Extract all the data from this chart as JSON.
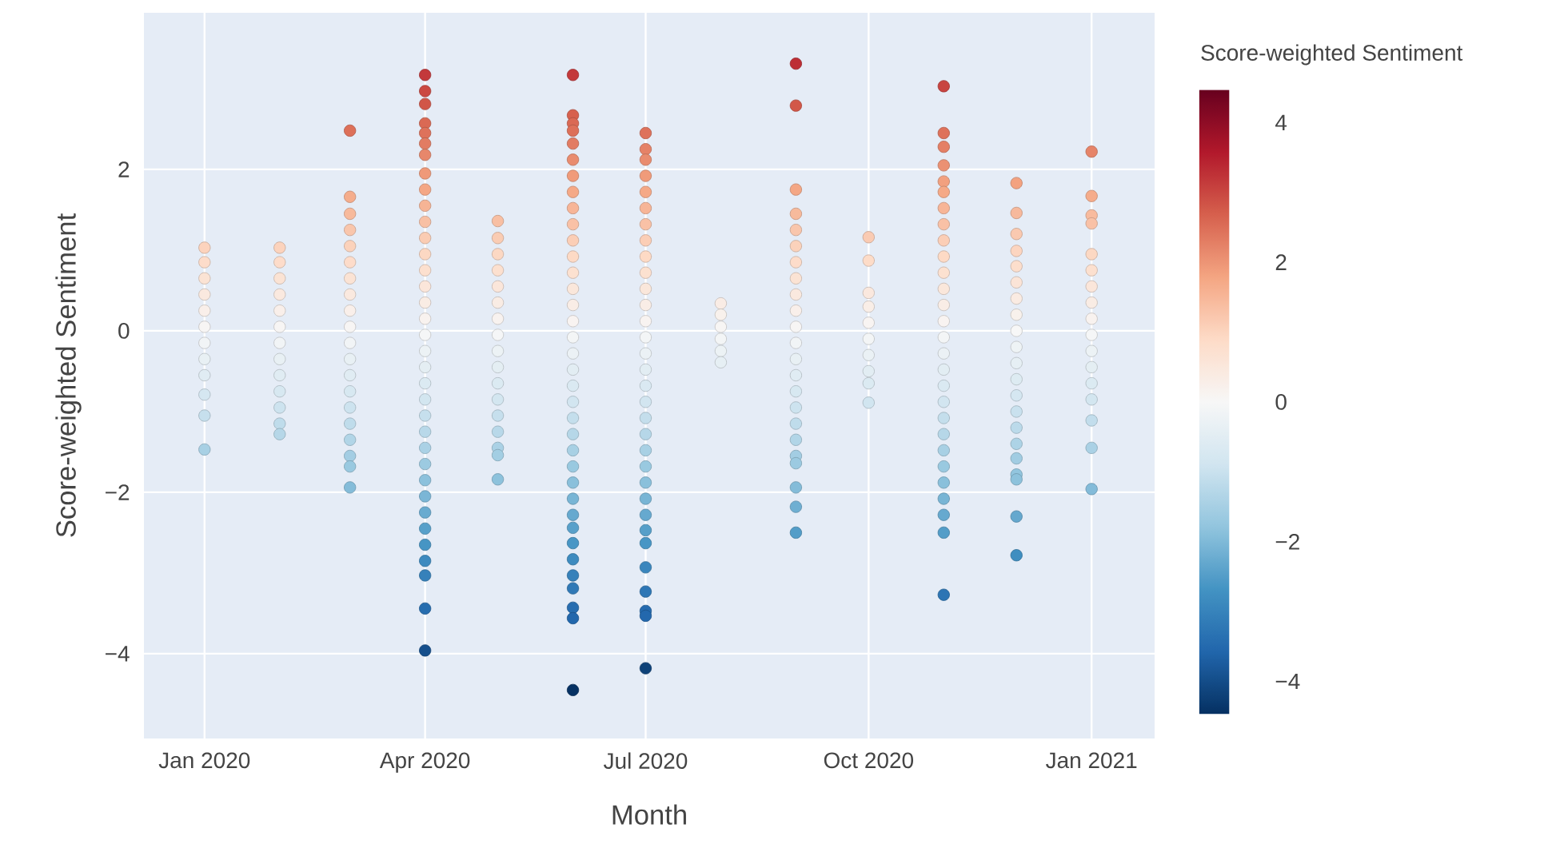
{
  "chart_data": {
    "type": "scatter",
    "xlabel": "Month",
    "ylabel": "Score-weighted Sentiment",
    "clabel": "Score-weighted Sentiment",
    "marker": "circle",
    "grid": true,
    "x": [
      "2020-01-01",
      "2020-01-01",
      "2020-01-01",
      "2020-01-01",
      "2020-01-01",
      "2020-01-01",
      "2020-01-01",
      "2020-01-01",
      "2020-01-01",
      "2020-01-01",
      "2020-01-01",
      "2020-01-01",
      "2020-02-01",
      "2020-02-01",
      "2020-02-01",
      "2020-02-01",
      "2020-02-01",
      "2020-02-01",
      "2020-02-01",
      "2020-02-01",
      "2020-02-01",
      "2020-02-01",
      "2020-02-01",
      "2020-02-01",
      "2020-02-01",
      "2020-03-01",
      "2020-03-01",
      "2020-03-01",
      "2020-03-01",
      "2020-03-01",
      "2020-03-01",
      "2020-03-01",
      "2020-03-01",
      "2020-03-01",
      "2020-03-01",
      "2020-03-01",
      "2020-03-01",
      "2020-03-01",
      "2020-03-01",
      "2020-03-01",
      "2020-03-01",
      "2020-03-01",
      "2020-03-01",
      "2020-03-01",
      "2020-03-01",
      "2020-04-01",
      "2020-04-01",
      "2020-04-01",
      "2020-04-01",
      "2020-04-01",
      "2020-04-01",
      "2020-04-01",
      "2020-04-01",
      "2020-04-01",
      "2020-04-01",
      "2020-04-01",
      "2020-04-01",
      "2020-04-01",
      "2020-04-01",
      "2020-04-01",
      "2020-04-01",
      "2020-04-01",
      "2020-04-01",
      "2020-04-01",
      "2020-04-01",
      "2020-04-01",
      "2020-04-01",
      "2020-04-01",
      "2020-04-01",
      "2020-04-01",
      "2020-04-01",
      "2020-04-01",
      "2020-04-01",
      "2020-04-01",
      "2020-04-01",
      "2020-04-01",
      "2020-04-01",
      "2020-04-01",
      "2020-04-01",
      "2020-04-01",
      "2020-05-01",
      "2020-05-01",
      "2020-05-01",
      "2020-05-01",
      "2020-05-01",
      "2020-05-01",
      "2020-05-01",
      "2020-05-01",
      "2020-05-01",
      "2020-05-01",
      "2020-05-01",
      "2020-05-01",
      "2020-05-01",
      "2020-05-01",
      "2020-05-01",
      "2020-05-01",
      "2020-05-01",
      "2020-06-01",
      "2020-06-01",
      "2020-06-01",
      "2020-06-01",
      "2020-06-01",
      "2020-06-01",
      "2020-06-01",
      "2020-06-01",
      "2020-06-01",
      "2020-06-01",
      "2020-06-01",
      "2020-06-01",
      "2020-06-01",
      "2020-06-01",
      "2020-06-01",
      "2020-06-01",
      "2020-06-01",
      "2020-06-01",
      "2020-06-01",
      "2020-06-01",
      "2020-06-01",
      "2020-06-01",
      "2020-06-01",
      "2020-06-01",
      "2020-06-01",
      "2020-06-01",
      "2020-06-01",
      "2020-06-01",
      "2020-06-01",
      "2020-06-01",
      "2020-06-01",
      "2020-06-01",
      "2020-06-01",
      "2020-06-01",
      "2020-06-01",
      "2020-06-01",
      "2020-07-01",
      "2020-07-01",
      "2020-07-01",
      "2020-07-01",
      "2020-07-01",
      "2020-07-01",
      "2020-07-01",
      "2020-07-01",
      "2020-07-01",
      "2020-07-01",
      "2020-07-01",
      "2020-07-01",
      "2020-07-01",
      "2020-07-01",
      "2020-07-01",
      "2020-07-01",
      "2020-07-01",
      "2020-07-01",
      "2020-07-01",
      "2020-07-01",
      "2020-07-01",
      "2020-07-01",
      "2020-07-01",
      "2020-07-01",
      "2020-07-01",
      "2020-07-01",
      "2020-07-01",
      "2020-07-01",
      "2020-07-01",
      "2020-07-01",
      "2020-07-01",
      "2020-07-01",
      "2020-08-01",
      "2020-08-01",
      "2020-08-01",
      "2020-08-01",
      "2020-08-01",
      "2020-08-01",
      "2020-09-01",
      "2020-09-01",
      "2020-09-01",
      "2020-09-01",
      "2020-09-01",
      "2020-09-01",
      "2020-09-01",
      "2020-09-01",
      "2020-09-01",
      "2020-09-01",
      "2020-09-01",
      "2020-09-01",
      "2020-09-01",
      "2020-09-01",
      "2020-09-01",
      "2020-09-01",
      "2020-09-01",
      "2020-09-01",
      "2020-09-01",
      "2020-09-01",
      "2020-09-01",
      "2020-09-01",
      "2020-09-01",
      "2020-10-01",
      "2020-10-01",
      "2020-10-01",
      "2020-10-01",
      "2020-10-01",
      "2020-10-01",
      "2020-10-01",
      "2020-10-01",
      "2020-10-01",
      "2020-10-01",
      "2020-11-01",
      "2020-11-01",
      "2020-11-01",
      "2020-11-01",
      "2020-11-01",
      "2020-11-01",
      "2020-11-01",
      "2020-11-01",
      "2020-11-01",
      "2020-11-01",
      "2020-11-01",
      "2020-11-01",
      "2020-11-01",
      "2020-11-01",
      "2020-11-01",
      "2020-11-01",
      "2020-11-01",
      "2020-11-01",
      "2020-11-01",
      "2020-11-01",
      "2020-11-01",
      "2020-11-01",
      "2020-11-01",
      "2020-11-01",
      "2020-11-01",
      "2020-11-01",
      "2020-11-01",
      "2020-11-01",
      "2020-12-01",
      "2020-12-01",
      "2020-12-01",
      "2020-12-01",
      "2020-12-01",
      "2020-12-01",
      "2020-12-01",
      "2020-12-01",
      "2020-12-01",
      "2020-12-01",
      "2020-12-01",
      "2020-12-01",
      "2020-12-01",
      "2020-12-01",
      "2020-12-01",
      "2020-12-01",
      "2020-12-01",
      "2020-12-01",
      "2020-12-01",
      "2020-12-01",
      "2020-12-01",
      "2021-01-01",
      "2021-01-01",
      "2021-01-01",
      "2021-01-01",
      "2021-01-01",
      "2021-01-01",
      "2021-01-01",
      "2021-01-01",
      "2021-01-01",
      "2021-01-01",
      "2021-01-01",
      "2021-01-01",
      "2021-01-01",
      "2021-01-01",
      "2021-01-01",
      "2021-01-01",
      "2021-01-01"
    ],
    "values": [
      1.03,
      0.85,
      0.65,
      0.45,
      0.25,
      0.05,
      -0.15,
      -0.35,
      -0.55,
      -0.79,
      -1.05,
      -1.47,
      1.03,
      0.85,
      0.65,
      0.45,
      0.25,
      0.05,
      -0.15,
      -0.35,
      -0.55,
      -0.75,
      -0.95,
      -1.15,
      -1.28,
      2.48,
      1.66,
      1.45,
      1.25,
      1.05,
      0.85,
      0.65,
      0.45,
      0.25,
      0.05,
      -0.15,
      -0.35,
      -0.55,
      -0.75,
      -0.95,
      -1.15,
      -1.35,
      -1.55,
      -1.68,
      -1.94,
      3.17,
      2.97,
      2.81,
      2.57,
      2.45,
      2.32,
      2.18,
      1.95,
      1.75,
      1.55,
      1.35,
      1.15,
      0.95,
      0.75,
      0.55,
      0.35,
      0.15,
      -0.05,
      -0.25,
      -0.45,
      -0.65,
      -0.85,
      -1.05,
      -1.25,
      -1.45,
      -1.65,
      -1.85,
      -2.05,
      -2.25,
      -2.45,
      -2.65,
      -2.85,
      -3.03,
      -3.44,
      -3.96,
      1.36,
      1.15,
      0.95,
      0.75,
      0.55,
      0.35,
      0.15,
      -0.05,
      -0.25,
      -0.45,
      -0.65,
      -0.85,
      -1.05,
      -1.25,
      -1.45,
      -1.54,
      -1.84,
      3.17,
      2.67,
      2.57,
      2.48,
      2.32,
      2.12,
      1.92,
      1.72,
      1.52,
      1.32,
      1.12,
      0.92,
      0.72,
      0.52,
      0.32,
      0.12,
      -0.08,
      -0.28,
      -0.48,
      -0.68,
      -0.88,
      -1.08,
      -1.28,
      -1.48,
      -1.68,
      -1.88,
      -2.08,
      -2.28,
      -2.44,
      -2.63,
      -2.83,
      -3.03,
      -3.19,
      -3.43,
      -3.56,
      -4.45,
      2.45,
      2.25,
      2.12,
      1.92,
      1.72,
      1.52,
      1.32,
      1.12,
      0.92,
      0.72,
      0.52,
      0.32,
      0.12,
      -0.08,
      -0.28,
      -0.48,
      -0.68,
      -0.88,
      -1.08,
      -1.28,
      -1.48,
      -1.68,
      -1.88,
      -2.08,
      -2.28,
      -2.47,
      -2.63,
      -2.93,
      -3.23,
      -3.47,
      -3.53,
      -4.18,
      0.34,
      0.2,
      0.05,
      -0.1,
      -0.25,
      -0.39,
      3.31,
      2.79,
      1.75,
      1.45,
      1.25,
      1.05,
      0.85,
      0.65,
      0.45,
      0.25,
      0.05,
      -0.15,
      -0.35,
      -0.55,
      -0.75,
      -0.95,
      -1.15,
      -1.35,
      -1.55,
      -1.64,
      -1.94,
      -2.18,
      -2.5,
      1.16,
      0.87,
      0.47,
      0.3,
      0.1,
      -0.1,
      -0.3,
      -0.5,
      -0.65,
      -0.89,
      3.03,
      2.45,
      2.28,
      2.05,
      1.85,
      1.72,
      1.52,
      1.32,
      1.12,
      0.92,
      0.72,
      0.52,
      0.32,
      0.12,
      -0.08,
      -0.28,
      -0.48,
      -0.68,
      -0.88,
      -1.08,
      -1.28,
      -1.48,
      -1.68,
      -1.88,
      -2.08,
      -2.28,
      -2.5,
      -3.27,
      1.83,
      1.46,
      1.2,
      0.99,
      0.8,
      0.6,
      0.4,
      0.2,
      0,
      -0.2,
      -0.4,
      -0.6,
      -0.8,
      -1,
      -1.2,
      -1.4,
      -1.58,
      -1.78,
      -1.84,
      -2.3,
      -2.78,
      2.22,
      1.67,
      1.43,
      1.33,
      0.95,
      0.75,
      0.55,
      0.35,
      0.15,
      -0.05,
      -0.25,
      -0.45,
      -0.65,
      -0.85,
      -1.11,
      -1.45,
      -1.96
    ],
    "cvalues": [
      1.03,
      0.85,
      0.65,
      0.45,
      0.25,
      0.05,
      -0.15,
      -0.35,
      -0.55,
      -0.79,
      -1.05,
      -1.47,
      1.03,
      0.85,
      0.65,
      0.45,
      0.25,
      0.05,
      -0.15,
      -0.35,
      -0.55,
      -0.75,
      -0.95,
      -1.15,
      -1.28,
      2.48,
      1.66,
      1.45,
      1.25,
      1.05,
      0.85,
      0.65,
      0.45,
      0.25,
      0.05,
      -0.15,
      -0.35,
      -0.55,
      -0.75,
      -0.95,
      -1.15,
      -1.35,
      -1.55,
      -1.68,
      -1.94,
      3.17,
      2.97,
      2.81,
      2.57,
      2.45,
      2.32,
      2.18,
      1.95,
      1.75,
      1.55,
      1.35,
      1.15,
      0.95,
      0.75,
      0.55,
      0.35,
      0.15,
      -0.05,
      -0.25,
      -0.45,
      -0.65,
      -0.85,
      -1.05,
      -1.25,
      -1.45,
      -1.65,
      -1.85,
      -2.05,
      -2.25,
      -2.45,
      -2.65,
      -2.85,
      -3.03,
      -3.44,
      -3.96,
      1.36,
      1.15,
      0.95,
      0.75,
      0.55,
      0.35,
      0.15,
      -0.05,
      -0.25,
      -0.45,
      -0.65,
      -0.85,
      -1.05,
      -1.25,
      -1.45,
      -1.54,
      -1.84,
      3.17,
      2.67,
      2.57,
      2.48,
      2.32,
      2.12,
      1.92,
      1.72,
      1.52,
      1.32,
      1.12,
      0.92,
      0.72,
      0.52,
      0.32,
      0.12,
      -0.08,
      -0.28,
      -0.48,
      -0.68,
      -0.88,
      -1.08,
      -1.28,
      -1.48,
      -1.68,
      -1.88,
      -2.08,
      -2.28,
      -2.44,
      -2.63,
      -2.83,
      -3.03,
      -3.19,
      -3.43,
      -3.56,
      -4.45,
      2.45,
      2.25,
      2.12,
      1.92,
      1.72,
      1.52,
      1.32,
      1.12,
      0.92,
      0.72,
      0.52,
      0.32,
      0.12,
      -0.08,
      -0.28,
      -0.48,
      -0.68,
      -0.88,
      -1.08,
      -1.28,
      -1.48,
      -1.68,
      -1.88,
      -2.08,
      -2.28,
      -2.47,
      -2.63,
      -2.93,
      -3.23,
      -3.47,
      -3.53,
      -4.18,
      0.34,
      0.2,
      0.05,
      -0.1,
      -0.25,
      -0.39,
      3.31,
      2.79,
      1.75,
      1.45,
      1.25,
      1.05,
      0.85,
      0.65,
      0.45,
      0.25,
      0.05,
      -0.15,
      -0.35,
      -0.55,
      -0.75,
      -0.95,
      -1.15,
      -1.35,
      -1.55,
      -1.64,
      -1.94,
      -2.18,
      -2.5,
      1.16,
      0.87,
      0.47,
      0.3,
      0.1,
      -0.1,
      -0.3,
      -0.5,
      -0.65,
      -0.89,
      3.03,
      2.45,
      2.28,
      2.05,
      1.85,
      1.72,
      1.52,
      1.32,
      1.12,
      0.92,
      0.72,
      0.52,
      0.32,
      0.12,
      -0.08,
      -0.28,
      -0.48,
      -0.68,
      -0.88,
      -1.08,
      -1.28,
      -1.48,
      -1.68,
      -1.88,
      -2.08,
      -2.28,
      -2.5,
      -3.27,
      1.83,
      1.46,
      1.2,
      0.99,
      0.8,
      0.6,
      0.4,
      0.2,
      0,
      -0.2,
      -0.4,
      -0.6,
      -0.8,
      -1,
      -1.2,
      -1.4,
      -1.58,
      -1.78,
      -1.84,
      -2.3,
      -2.78,
      2.22,
      1.67,
      1.43,
      1.33,
      0.95,
      0.75,
      0.55,
      0.35,
      0.15,
      -0.05,
      -0.25,
      -0.45,
      -0.65,
      -0.85,
      -1.11,
      -1.45,
      -1.96
    ],
    "xlim": [
      "2019-12-07",
      "2021-01-27"
    ],
    "xticks": [
      {
        "value": "2020-01-01",
        "label": "Jan 2020"
      },
      {
        "value": "2020-04-01",
        "label": "Apr 2020"
      },
      {
        "value": "2020-07-01",
        "label": "Jul 2020"
      },
      {
        "value": "2020-10-01",
        "label": "Oct 2020"
      },
      {
        "value": "2021-01-01",
        "label": "Jan 2021"
      }
    ],
    "ylim": [
      -5.05,
      3.94
    ],
    "yticks": [
      {
        "value": -4,
        "label": "−4"
      },
      {
        "value": -2,
        "label": "−2"
      },
      0,
      2
    ],
    "clim": [
      -4.47,
      4.47
    ],
    "cticks": [
      {
        "value": -4,
        "label": "−4"
      },
      {
        "value": -2,
        "label": "−2"
      },
      0,
      2,
      4
    ]
  }
}
